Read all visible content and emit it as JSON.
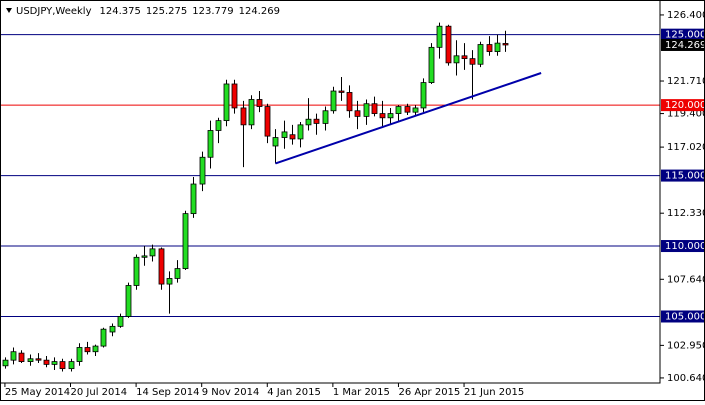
{
  "chart_data": {
    "type": "candlestick",
    "title": "USDJPY,Weekly",
    "categories": [
      "25 May 2014",
      null,
      null,
      null,
      null,
      null,
      null,
      null,
      "20 Jul 2014",
      null,
      null,
      null,
      null,
      null,
      null,
      null,
      "14 Sep 2014",
      null,
      null,
      null,
      null,
      null,
      null,
      null,
      "9 Nov 2014",
      null,
      null,
      null,
      null,
      null,
      null,
      null,
      "4 Jan 2015",
      null,
      null,
      null,
      null,
      null,
      null,
      null,
      "1 Mar 2015",
      null,
      null,
      null,
      null,
      null,
      null,
      null,
      "26 Apr 2015",
      null,
      null,
      null,
      null,
      null,
      null,
      null,
      "21 Jun 2015",
      null,
      null,
      null,
      null,
      null
    ],
    "open": [
      101.5,
      101.9,
      102.4,
      101.8,
      102.0,
      101.9,
      101.6,
      101.8,
      101.3,
      101.8,
      102.8,
      102.5,
      102.9,
      103.9,
      104.3,
      105.0,
      107.2,
      109.2,
      109.3,
      109.8,
      107.3,
      107.7,
      108.4,
      112.3,
      114.4,
      116.3,
      118.2,
      118.9,
      121.5,
      119.8,
      118.6,
      120.4,
      119.9,
      117.1,
      117.7,
      117.9,
      117.6,
      118.6,
      119.0,
      118.7,
      119.6,
      121.0,
      120.9,
      119.6,
      119.2,
      120.1,
      119.4,
      119.1,
      119.4,
      119.9,
      119.5,
      119.8,
      121.6,
      124.1,
      125.6,
      123.0,
      123.5,
      123.3,
      122.9,
      124.3,
      123.8,
      124.375
    ],
    "high": [
      102.1,
      102.8,
      102.6,
      102.3,
      102.4,
      102.2,
      102.1,
      102.0,
      102.0,
      103.1,
      103.2,
      103.0,
      104.2,
      104.5,
      105.2,
      107.4,
      109.4,
      110.0,
      110.1,
      109.9,
      108.2,
      109.0,
      112.5,
      114.9,
      116.7,
      118.9,
      119.1,
      121.8,
      121.8,
      120.3,
      120.7,
      121.0,
      120.1,
      118.3,
      118.9,
      118.6,
      118.8,
      120.5,
      119.4,
      119.9,
      121.3,
      122.0,
      121.4,
      120.3,
      120.4,
      120.6,
      120.3,
      119.8,
      120.0,
      120.1,
      120.0,
      121.9,
      124.4,
      125.85,
      125.7,
      124.6,
      124.4,
      123.9,
      124.5,
      124.9,
      125.0,
      125.275
    ],
    "low": [
      101.3,
      101.6,
      101.7,
      101.5,
      101.7,
      101.4,
      101.2,
      101.1,
      101.1,
      101.5,
      102.3,
      102.2,
      102.8,
      103.6,
      104.2,
      104.9,
      106.9,
      108.6,
      108.9,
      106.9,
      105.2,
      107.4,
      108.3,
      112.0,
      113.9,
      115.5,
      117.3,
      118.5,
      119.4,
      115.6,
      118.3,
      119.5,
      117.3,
      115.86,
      116.9,
      117.2,
      117.0,
      118.2,
      117.9,
      118.2,
      119.4,
      120.3,
      119.1,
      118.3,
      118.6,
      119.2,
      118.5,
      118.6,
      118.9,
      119.3,
      119.2,
      119.5,
      121.5,
      123.3,
      122.8,
      122.1,
      122.5,
      120.4,
      122.7,
      123.5,
      123.5,
      123.779
    ],
    "close": [
      101.9,
      102.5,
      101.8,
      102.0,
      101.9,
      101.6,
      101.8,
      101.3,
      101.8,
      102.8,
      102.5,
      102.9,
      104.1,
      104.3,
      105.0,
      107.2,
      109.2,
      109.3,
      109.8,
      107.3,
      107.7,
      108.4,
      112.3,
      114.4,
      116.3,
      118.2,
      118.9,
      121.5,
      119.8,
      118.6,
      120.4,
      119.9,
      117.8,
      117.7,
      118.1,
      117.6,
      118.6,
      119.0,
      118.7,
      119.6,
      121.0,
      120.9,
      119.6,
      119.2,
      120.1,
      119.4,
      119.1,
      119.4,
      119.9,
      119.5,
      119.8,
      121.6,
      124.1,
      125.6,
      123.0,
      123.5,
      123.3,
      122.9,
      124.3,
      123.8,
      124.4,
      124.269
    ],
    "up_color": "#22dd22",
    "down_color": "#ee0000",
    "xlim": [
      -0.6,
      79.9
    ],
    "ylim": [
      100.28,
      127.46
    ],
    "yticks": [
      {
        "value": 126.4,
        "label": "126.400"
      },
      {
        "value": 121.71,
        "label": "121.710"
      },
      {
        "value": 119.4,
        "label": "119.400"
      },
      {
        "value": 117.02,
        "label": "117.020"
      },
      {
        "value": 112.33,
        "label": "112.330"
      },
      {
        "value": 107.64,
        "label": "107.640"
      },
      {
        "value": 102.95,
        "label": "102.950"
      },
      {
        "value": 100.64,
        "label": "100.640"
      }
    ],
    "levels": [
      {
        "value": 125,
        "label": "125.000",
        "color": "#000080"
      },
      {
        "value": 120,
        "label": "120.000",
        "color": "#ee0000"
      },
      {
        "value": 115,
        "label": "115.000",
        "color": "#000080"
      },
      {
        "value": 110,
        "label": "110.000",
        "color": "#000080"
      },
      {
        "value": 105,
        "label": "105.000",
        "color": "#000080"
      }
    ],
    "trendline": {
      "color": "#0000aa",
      "start": [
        33,
        115.86
      ],
      "end": [
        65.4,
        122.28
      ]
    },
    "price_label_color": "#000000"
  }
}
